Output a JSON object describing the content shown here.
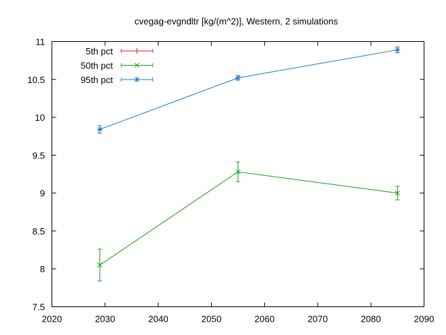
{
  "chart_data": {
    "type": "line",
    "title": "cvegag-evgndltr [kg/(m^2)], Western, 2 simulations",
    "xlabel": "",
    "ylabel": "",
    "xlim": [
      2020,
      2090
    ],
    "ylim": [
      7.5,
      11
    ],
    "x_ticks": [
      "2020",
      "2030",
      "2040",
      "2050",
      "2060",
      "2070",
      "2080",
      "2090"
    ],
    "y_ticks": [
      "7.5",
      "8",
      "8.5",
      "9",
      "9.5",
      "10",
      "10.5",
      "11"
    ],
    "x_tick_values": [
      2020,
      2030,
      2040,
      2050,
      2060,
      2070,
      2080,
      2090
    ],
    "y_tick_values": [
      7.5,
      8,
      8.5,
      9,
      9.5,
      10,
      10.5,
      11
    ],
    "grid": false,
    "legend_position": "top-left",
    "series": [
      {
        "name": "5th pct",
        "color": "#e41a1c",
        "marker": "plus",
        "x": [],
        "y": [],
        "err": []
      },
      {
        "name": "50th pct",
        "color": "#1aa11a",
        "marker": "cross",
        "x": [
          2029,
          2055,
          2085
        ],
        "y": [
          8.05,
          9.28,
          9.0
        ],
        "err": [
          0.21,
          0.13,
          0.09
        ]
      },
      {
        "name": "95th pct",
        "color": "#1f78c8",
        "marker": "star",
        "x": [
          2029,
          2055,
          2085
        ],
        "y": [
          9.84,
          10.52,
          10.89
        ],
        "err": [
          0.05,
          0.03,
          0.04
        ]
      }
    ]
  }
}
